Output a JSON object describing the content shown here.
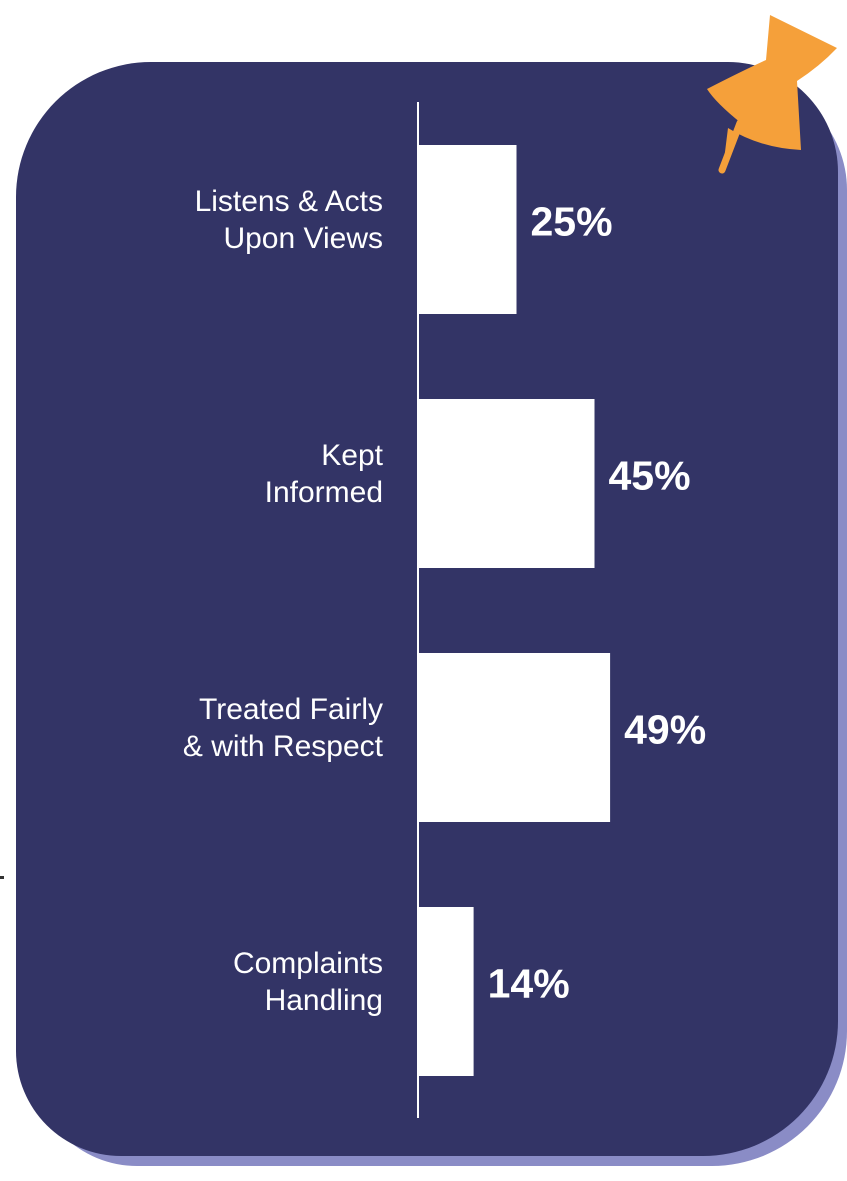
{
  "chart_data": {
    "type": "bar",
    "orientation": "horizontal",
    "categories": [
      [
        "Listens & Acts",
        "Upon Views"
      ],
      [
        "Kept",
        "Informed"
      ],
      [
        "Treated Fairly",
        "& with Respect"
      ],
      [
        "Complaints",
        "Handling"
      ]
    ],
    "values": [
      25,
      45,
      49,
      14
    ],
    "value_labels": [
      "25%",
      "45%",
      "49%",
      "14%"
    ],
    "unit": "%",
    "xlim": [
      0,
      100
    ],
    "grid": false,
    "legend": "none"
  },
  "colors": {
    "card": "#333466",
    "card_shadow": "#8a8cc6",
    "bar": "#ffffff",
    "pushpin": "#f5a03a"
  },
  "icons": {
    "pin": "pushpin-icon"
  }
}
